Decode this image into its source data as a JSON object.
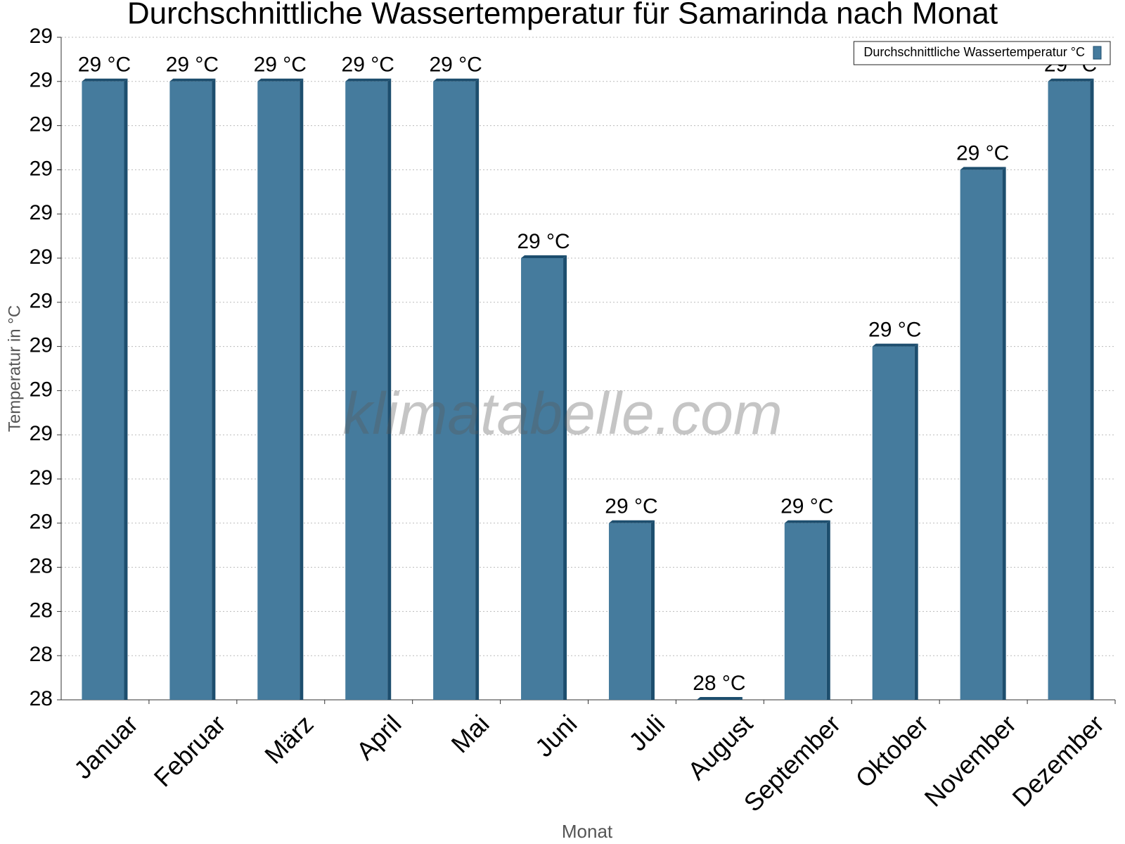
{
  "chart_data": {
    "type": "bar",
    "title": "Durchschnittliche Wassertemperatur für Samarinda nach Monat",
    "x_label": "Monat",
    "y_label": "Temperatur in °C",
    "watermark": "klimatabelle.com",
    "categories": [
      "Januar",
      "Februar",
      "März",
      "April",
      "Mai",
      "Juni",
      "Juli",
      "August",
      "September",
      "Oktober",
      "November",
      "Dezember"
    ],
    "series": [
      {
        "name": "Durchschnittliche Wassertemperatur °C",
        "color": "#457b9d",
        "values": [
          29.0,
          29.0,
          29.0,
          29.0,
          29.0,
          28.8,
          28.5,
          28.3,
          28.5,
          28.7,
          28.9,
          29.0
        ],
        "value_labels": [
          "29 °C",
          "29 °C",
          "29 °C",
          "29 °C",
          "29 °C",
          "29 °C",
          "29 °C",
          "28 °C",
          "29 °C",
          "29 °C",
          "29 °C",
          "29 °C"
        ]
      }
    ],
    "ylim": [
      28.3,
      29.05
    ],
    "yticks": [
      {
        "value": 28.3,
        "label": "28"
      },
      {
        "value": 28.35,
        "label": "28"
      },
      {
        "value": 28.4,
        "label": "28"
      },
      {
        "value": 28.45,
        "label": "28"
      },
      {
        "value": 28.5,
        "label": "29"
      },
      {
        "value": 28.55,
        "label": "29"
      },
      {
        "value": 28.6,
        "label": "29"
      },
      {
        "value": 28.65,
        "label": "29"
      },
      {
        "value": 28.7,
        "label": "29"
      },
      {
        "value": 28.75,
        "label": "29"
      },
      {
        "value": 28.8,
        "label": "29"
      },
      {
        "value": 28.85,
        "label": "29"
      },
      {
        "value": 28.9,
        "label": "29"
      },
      {
        "value": 28.95,
        "label": "29"
      },
      {
        "value": 29.0,
        "label": "29"
      },
      {
        "value": 29.05,
        "label": "29"
      }
    ],
    "grid": true,
    "legend": "top-right"
  }
}
